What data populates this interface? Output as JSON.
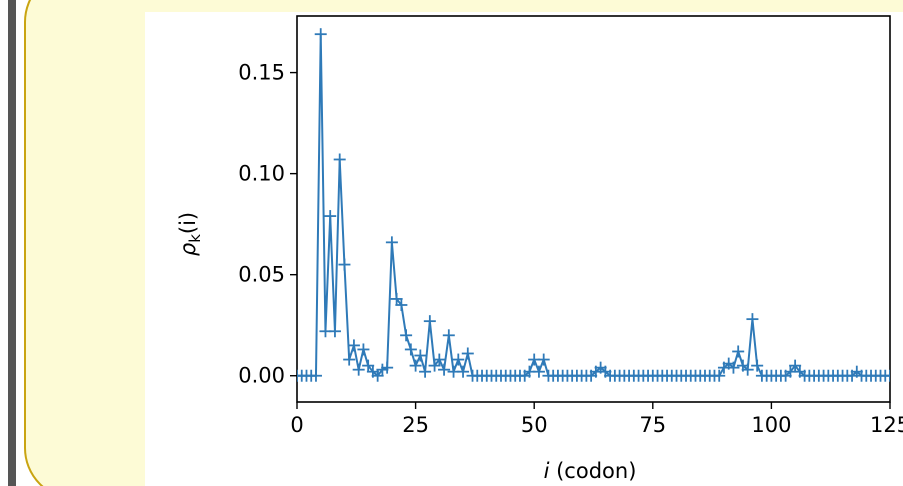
{
  "chart_data": {
    "type": "line",
    "ylabel_symbol": "ρ",
    "ylabel_subscript": "k",
    "ylabel_suffix": "(i)",
    "xlabel_var": "i",
    "xlabel_rest": " (codon)",
    "xlim": [
      0,
      125
    ],
    "ylim": [
      -0.013,
      0.178
    ],
    "xticks": [
      {
        "value": 0,
        "label": "0"
      },
      {
        "value": 25,
        "label": "25"
      },
      {
        "value": 50,
        "label": "50"
      },
      {
        "value": 75,
        "label": "75"
      },
      {
        "value": 100,
        "label": "100"
      },
      {
        "value": 125,
        "label": "125"
      }
    ],
    "yticks": [
      {
        "value": 0.0,
        "label": "0.00"
      },
      {
        "value": 0.05,
        "label": "0.05"
      },
      {
        "value": 0.1,
        "label": "0.10"
      },
      {
        "value": 0.15,
        "label": "0.15"
      }
    ],
    "grid": false,
    "marker": "+",
    "color": "#2f7ab8",
    "series": [
      {
        "x": [
          0,
          1,
          2,
          3,
          4,
          5,
          6,
          7,
          8,
          9,
          10,
          11,
          12,
          13,
          14,
          15,
          16,
          17,
          18,
          19,
          20,
          21,
          22,
          23,
          24,
          25,
          26,
          27,
          28,
          29,
          30,
          31,
          32,
          33,
          34,
          35,
          36,
          37,
          38,
          39,
          40,
          41,
          42,
          43,
          44,
          45,
          46,
          47,
          48,
          49,
          50,
          51,
          52,
          53,
          54,
          55,
          56,
          57,
          58,
          59,
          60,
          61,
          62,
          63,
          64,
          65,
          66,
          67,
          68,
          69,
          70,
          71,
          72,
          73,
          74,
          75,
          76,
          77,
          78,
          79,
          80,
          81,
          82,
          83,
          84,
          85,
          86,
          87,
          88,
          89,
          90,
          91,
          92,
          93,
          94,
          95,
          96,
          97,
          98,
          99,
          100,
          101,
          102,
          103,
          104,
          105,
          106,
          107,
          108,
          109,
          110,
          111,
          112,
          113,
          114,
          115,
          116,
          117,
          118,
          119,
          120,
          121,
          122,
          123,
          124,
          125
        ],
        "y": [
          0.0,
          0.0,
          0.0,
          0.0,
          0.0,
          0.169,
          0.022,
          0.079,
          0.022,
          0.107,
          0.055,
          0.008,
          0.015,
          0.003,
          0.013,
          0.005,
          0.002,
          0.0,
          0.003,
          0.004,
          0.066,
          0.038,
          0.035,
          0.02,
          0.013,
          0.005,
          0.01,
          0.002,
          0.027,
          0.005,
          0.008,
          0.003,
          0.02,
          0.002,
          0.008,
          0.002,
          0.011,
          0.0,
          0.0,
          0.0,
          0.0,
          0.0,
          0.0,
          0.0,
          0.0,
          0.0,
          0.0,
          0.0,
          0.0,
          0.002,
          0.008,
          0.002,
          0.008,
          0.0,
          0.0,
          0.0,
          0.0,
          0.0,
          0.0,
          0.0,
          0.0,
          0.0,
          0.0,
          0.002,
          0.004,
          0.002,
          0.0,
          0.0,
          0.0,
          0.0,
          0.0,
          0.0,
          0.0,
          0.0,
          0.0,
          0.0,
          0.0,
          0.0,
          0.0,
          0.0,
          0.0,
          0.0,
          0.0,
          0.0,
          0.0,
          0.0,
          0.0,
          0.0,
          0.0,
          0.0,
          0.004,
          0.006,
          0.004,
          0.012,
          0.005,
          0.003,
          0.028,
          0.005,
          0.0,
          0.0,
          0.0,
          0.0,
          0.0,
          0.0,
          0.002,
          0.005,
          0.002,
          0.0,
          0.0,
          0.0,
          0.0,
          0.0,
          0.0,
          0.0,
          0.0,
          0.0,
          0.0,
          0.0,
          0.002,
          0.0,
          0.0,
          0.0,
          0.0,
          0.0,
          0.0,
          0.0
        ]
      }
    ]
  }
}
